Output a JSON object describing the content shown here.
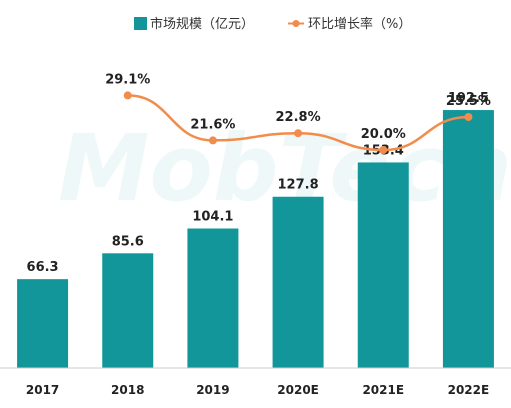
{
  "chart_data": {
    "type": "bar",
    "categories": [
      "2017",
      "2018",
      "2019",
      "2020E",
      "2021E",
      "2022E"
    ],
    "series": [
      {
        "name": "市场规模（亿元）",
        "type": "bar",
        "values": [
          66.3,
          85.6,
          104.1,
          127.8,
          153.4,
          192.5
        ],
        "labels": [
          "66.3",
          "85.6",
          "104.1",
          "127.8",
          "153.4",
          "192.5"
        ],
        "color": "#12969A"
      },
      {
        "name": "环比增长率（%）",
        "type": "line",
        "values": [
          null,
          29.1,
          21.6,
          22.8,
          20.0,
          25.5
        ],
        "labels": [
          null,
          "29.1%",
          "21.6%",
          "22.8%",
          "20.0%",
          "25.5%"
        ],
        "color": "#F28C4B"
      }
    ],
    "ylim": [
      0,
      200
    ],
    "y2lim": [
      0,
      40
    ],
    "grid": false,
    "legend_position": "top-center",
    "watermark": "MobTech"
  }
}
